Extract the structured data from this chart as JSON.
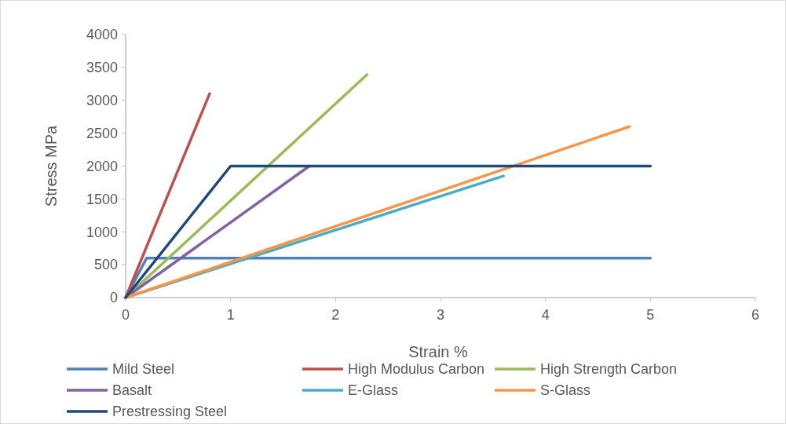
{
  "chart_data": {
    "type": "line",
    "xlabel": "Strain %",
    "ylabel": "Stress MPa",
    "xlim": [
      0,
      6
    ],
    "xticks": [
      0,
      1,
      2,
      3,
      4,
      5,
      6
    ],
    "ylim": [
      0,
      4000
    ],
    "yticks": [
      0,
      500,
      1000,
      1500,
      2000,
      2500,
      3000,
      3500,
      4000
    ],
    "grid": false,
    "legend": "bottom",
    "marker": "none",
    "line_style": "solid",
    "series": [
      {
        "name": "Mild Steel",
        "color": "#4f81bd",
        "x": [
          0,
          0.2,
          5
        ],
        "values": [
          0,
          600,
          600
        ]
      },
      {
        "name": "High Modulus Carbon",
        "color": "#c0504d",
        "x": [
          0,
          0.8
        ],
        "values": [
          0,
          3100
        ]
      },
      {
        "name": "High Strength Carbon",
        "color": "#9bbb59",
        "x": [
          0,
          2.3
        ],
        "values": [
          0,
          3390
        ]
      },
      {
        "name": "Basalt",
        "color": "#8064a2",
        "x": [
          0,
          1.75
        ],
        "values": [
          0,
          2000
        ]
      },
      {
        "name": "E-Glass",
        "color": "#4bacc6",
        "x": [
          0,
          3.6
        ],
        "values": [
          0,
          1850
        ]
      },
      {
        "name": "S-Glass",
        "color": "#f79646",
        "x": [
          0,
          4.8
        ],
        "values": [
          0,
          2600
        ]
      },
      {
        "name": "Prestressing Steel",
        "color": "#1f497d",
        "x": [
          0,
          1,
          5
        ],
        "values": [
          0,
          2000,
          2000
        ]
      }
    ]
  }
}
